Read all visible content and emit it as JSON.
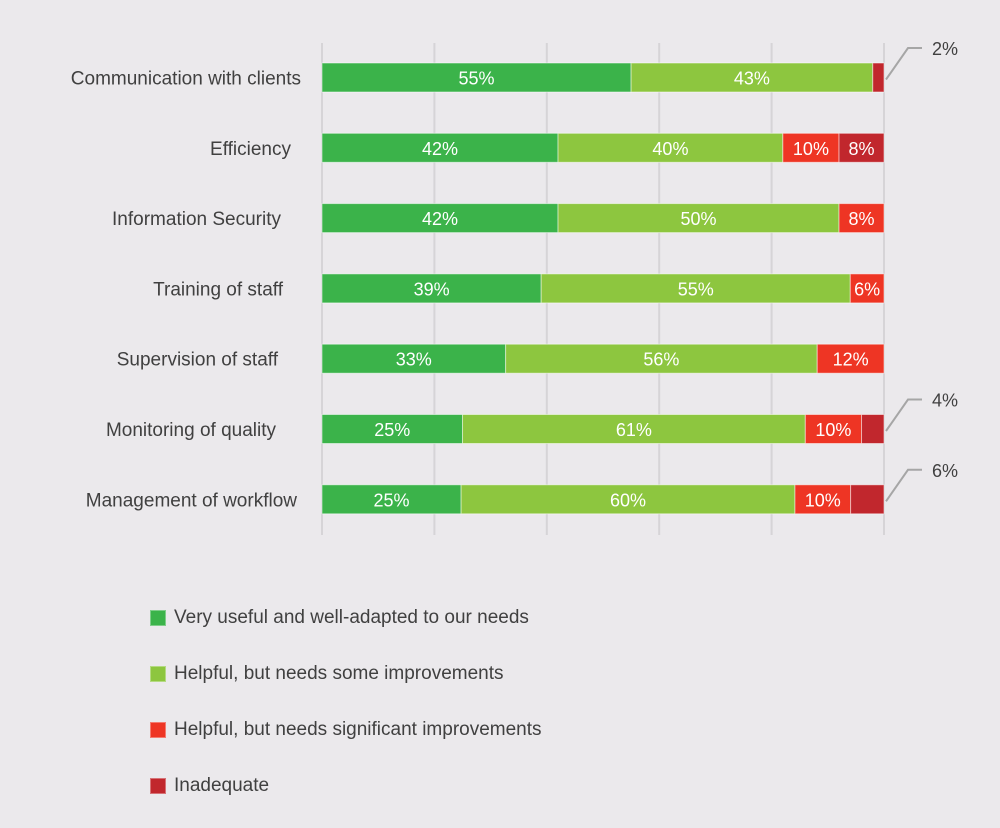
{
  "chart_data": {
    "type": "bar",
    "orientation": "horizontal",
    "stacked": true,
    "percent_stacked": true,
    "title": "",
    "xlabel": "",
    "ylabel": "",
    "xlim": [
      0,
      100
    ],
    "grid": true,
    "legend_position": "bottom",
    "categories": [
      "Communication with clients",
      "Efficiency",
      "Information Security",
      "Training of staff",
      "Supervision of staff",
      "Monitoring of quality",
      "Management of workflow"
    ],
    "series": [
      {
        "name": "Very useful and well-adapted to our needs",
        "color": "#3bb34a",
        "values": [
          55,
          42,
          42,
          39,
          33,
          25,
          25
        ]
      },
      {
        "name": "Helpful, but needs some improvements",
        "color": "#8dc63f",
        "values": [
          43,
          40,
          50,
          55,
          56,
          61,
          60
        ]
      },
      {
        "name": "Helpful, but needs significant improvements",
        "color": "#ee3524",
        "values": [
          0,
          10,
          8,
          6,
          12,
          10,
          10
        ]
      },
      {
        "name": "Inadequate",
        "color": "#c1272d",
        "values": [
          2,
          8,
          0,
          0,
          0,
          4,
          6
        ]
      }
    ],
    "data_labels": [
      [
        "55%",
        "43%",
        "",
        "2%"
      ],
      [
        "42%",
        "40%",
        "10%",
        "8%"
      ],
      [
        "42%",
        "50%",
        "8%",
        ""
      ],
      [
        "39%",
        "55%",
        "6%",
        ""
      ],
      [
        "33%",
        "56%",
        "12%",
        ""
      ],
      [
        "25%",
        "61%",
        "10%",
        "4%"
      ],
      [
        "25%",
        "60%",
        "10%",
        "6%"
      ]
    ],
    "callouts": [
      {
        "category": "Communication with clients",
        "label": "2%"
      },
      {
        "category": "Monitoring of quality",
        "label": "4%"
      },
      {
        "category": "Management of workflow",
        "label": "6%"
      }
    ]
  },
  "legend": {
    "items": [
      {
        "label": "Very useful and well-adapted to our needs",
        "color": "#3bb34a"
      },
      {
        "label": "Helpful, but needs some improvements",
        "color": "#8dc63f"
      },
      {
        "label": "Helpful, but needs significant improvements",
        "color": "#ee3524"
      },
      {
        "label": "Inadequate",
        "color": "#c1272d"
      }
    ]
  }
}
